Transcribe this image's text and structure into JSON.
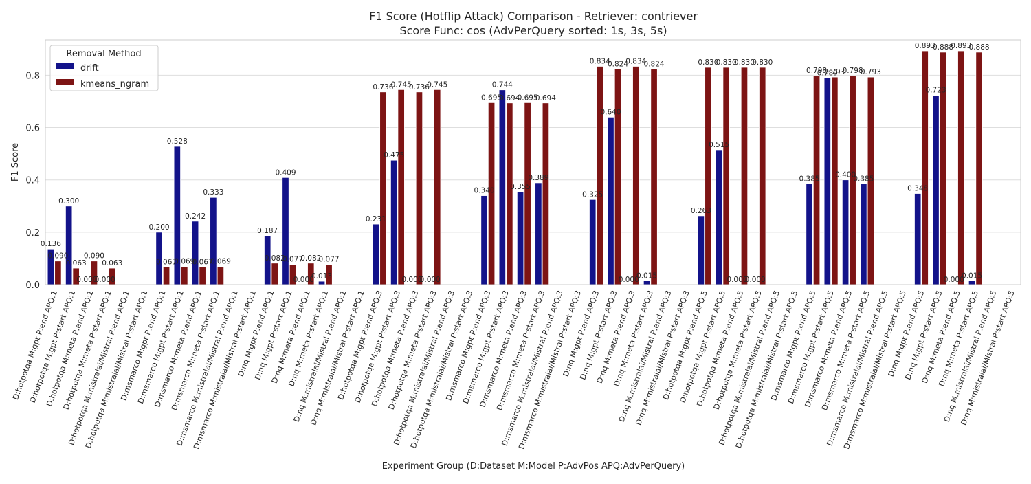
{
  "chart_data": {
    "type": "bar",
    "title_line1": "F1 Score (Hotflip Attack) Comparison - Retriever: contriever",
    "title_line2": "Score Func: cos (AdvPerQuery sorted: 1s, 3s, 5s)",
    "xlabel": "Experiment Group (D:Dataset M:Model P:AdvPos APQ:AdvPerQuery)",
    "ylabel": "F1 Score",
    "ylim": [
      0,
      0.935
    ],
    "yticks": [
      "0.0",
      "0.2",
      "0.4",
      "0.6",
      "0.8"
    ],
    "ytick_values": [
      0,
      0.2,
      0.4,
      0.6,
      0.8
    ],
    "grid": true,
    "legend_title": "Removal Method",
    "legend_position": "top-left",
    "categories": [
      "D:hotpotqa M:gpt P:end APQ:1",
      "D:hotpotqa M:gpt P:start APQ:1",
      "D:hotpotqa M:meta P:end APQ:1",
      "D:hotpotqa M:meta P:start APQ:1",
      "D:hotpotqa M:mistralai/Mistral P:end APQ:1",
      "D:hotpotqa M:mistralai/Mistral P:start APQ:1",
      "D:msmarco M:gpt P:end APQ:1",
      "D:msmarco M:gpt P:start APQ:1",
      "D:msmarco M:meta P:end APQ:1",
      "D:msmarco M:meta P:start APQ:1",
      "D:msmarco M:mistralai/Mistral P:end APQ:1",
      "D:msmarco M:mistralai/Mistral P:start APQ:1",
      "D:nq M:gpt P:end APQ:1",
      "D:nq M:gpt P:start APQ:1",
      "D:nq M:meta P:end APQ:1",
      "D:nq M:meta P:start APQ:1",
      "D:nq M:mistralai/Mistral P:end APQ:1",
      "D:nq M:mistralai/Mistral P:start APQ:1",
      "D:hotpotqa M:gpt P:end APQ:3",
      "D:hotpotqa M:gpt P:start APQ:3",
      "D:hotpotqa M:meta P:end APQ:3",
      "D:hotpotqa M:meta P:start APQ:3",
      "D:hotpotqa M:mistralai/Mistral P:end APQ:3",
      "D:hotpotqa M:mistralai/Mistral P:start APQ:3",
      "D:msmarco M:gpt P:end APQ:3",
      "D:msmarco M:gpt P:start APQ:3",
      "D:msmarco M:meta P:end APQ:3",
      "D:msmarco M:meta P:start APQ:3",
      "D:msmarco M:mistralai/Mistral P:end APQ:3",
      "D:msmarco M:mistralai/Mistral P:start APQ:3",
      "D:nq M:gpt P:end APQ:3",
      "D:nq M:gpt P:start APQ:3",
      "D:nq M:meta P:end APQ:3",
      "D:nq M:meta P:start APQ:3",
      "D:nq M:mistralai/Mistral P:end APQ:3",
      "D:nq M:mistralai/Mistral P:start APQ:3",
      "D:hotpotqa M:gpt P:end APQ:5",
      "D:hotpotqa M:gpt P:start APQ:5",
      "D:hotpotqa M:meta P:end APQ:5",
      "D:hotpotqa M:meta P:start APQ:5",
      "D:hotpotqa M:mistralai/Mistral P:end APQ:5",
      "D:hotpotqa M:mistralai/Mistral P:start APQ:5",
      "D:msmarco M:gpt P:end APQ:5",
      "D:msmarco M:gpt P:start APQ:5",
      "D:msmarco M:meta P:end APQ:5",
      "D:msmarco M:meta P:start APQ:5",
      "D:msmarco M:mistralai/Mistral P:end APQ:5",
      "D:msmarco M:mistralai/Mistral P:start APQ:5",
      "D:nq M:gpt P:end APQ:5",
      "D:nq M:gpt P:start APQ:5",
      "D:nq M:meta P:end APQ:5",
      "D:nq M:meta P:start APQ:5",
      "D:nq M:mistralai/Mistral P:end APQ:5",
      "D:nq M:mistralai/Mistral P:start APQ:5"
    ],
    "series": [
      {
        "name": "drift",
        "color": "#13138a",
        "values": [
          0.136,
          0.3,
          0.0,
          0.0,
          null,
          null,
          0.2,
          0.528,
          0.242,
          0.333,
          null,
          null,
          0.187,
          0.409,
          0.0,
          0.013,
          null,
          null,
          0.231,
          0.475,
          0.0,
          0.0,
          null,
          null,
          0.34,
          0.744,
          0.355,
          0.389,
          null,
          null,
          0.325,
          0.64,
          0.0,
          0.015,
          null,
          null,
          0.263,
          0.515,
          0.0,
          0.0,
          null,
          null,
          0.385,
          0.789,
          0.4,
          0.385,
          null,
          null,
          0.348,
          0.723,
          0.0,
          0.015,
          null,
          null
        ],
        "labels": [
          "0.136",
          "0.300",
          "0.000",
          "0.000",
          "",
          "",
          "0.200",
          "0.528",
          "0.242",
          "0.333",
          "",
          "",
          "0.187",
          "0.409",
          "0.000",
          "0.013",
          "",
          "",
          "0.231",
          "0.475",
          "0.000",
          "0.000",
          "",
          "",
          "0.340",
          "0.744",
          "0.355",
          "0.389",
          "",
          "",
          "0.325",
          "0.640",
          "0.000",
          "0.015",
          "",
          "",
          "0.263",
          "0.515",
          "0.000",
          "0.000",
          "",
          "",
          "0.385",
          "0.789",
          "0.400",
          "0.385",
          "",
          "",
          "0.348",
          "0.723",
          "0.000",
          "0.015",
          "",
          ""
        ]
      },
      {
        "name": "kmeans_ngram",
        "color": "#7d1414",
        "values": [
          0.09,
          0.063,
          0.09,
          0.063,
          null,
          null,
          0.067,
          0.069,
          0.067,
          0.069,
          null,
          null,
          0.082,
          0.077,
          0.082,
          0.077,
          null,
          null,
          0.736,
          0.745,
          0.736,
          0.745,
          null,
          null,
          0.695,
          0.694,
          0.695,
          0.694,
          null,
          null,
          0.834,
          0.824,
          0.834,
          0.824,
          null,
          null,
          0.83,
          0.83,
          0.83,
          0.83,
          null,
          null,
          0.798,
          0.793,
          0.798,
          0.793,
          null,
          null,
          0.893,
          0.888,
          0.893,
          0.888,
          null,
          null
        ],
        "labels": [
          "0.090",
          "0.063",
          "0.090",
          "0.063",
          "",
          "",
          "0.067",
          "0.069",
          "0.067",
          "0.069",
          "",
          "",
          "0.082",
          "0.077",
          "0.082",
          "0.077",
          "",
          "",
          "0.736",
          "0.745",
          "0.736",
          "0.745",
          "",
          "",
          "0.695",
          "0.694",
          "0.695",
          "0.694",
          "",
          "",
          "0.834",
          "0.824",
          "0.834",
          "0.824",
          "",
          "",
          "0.830",
          "0.830",
          "0.830",
          "0.830",
          "",
          "",
          "0.798",
          "0.793",
          "0.798",
          "0.793",
          "",
          "",
          "0.893",
          "0.888",
          "0.893",
          "0.888",
          "",
          ""
        ]
      }
    ]
  }
}
